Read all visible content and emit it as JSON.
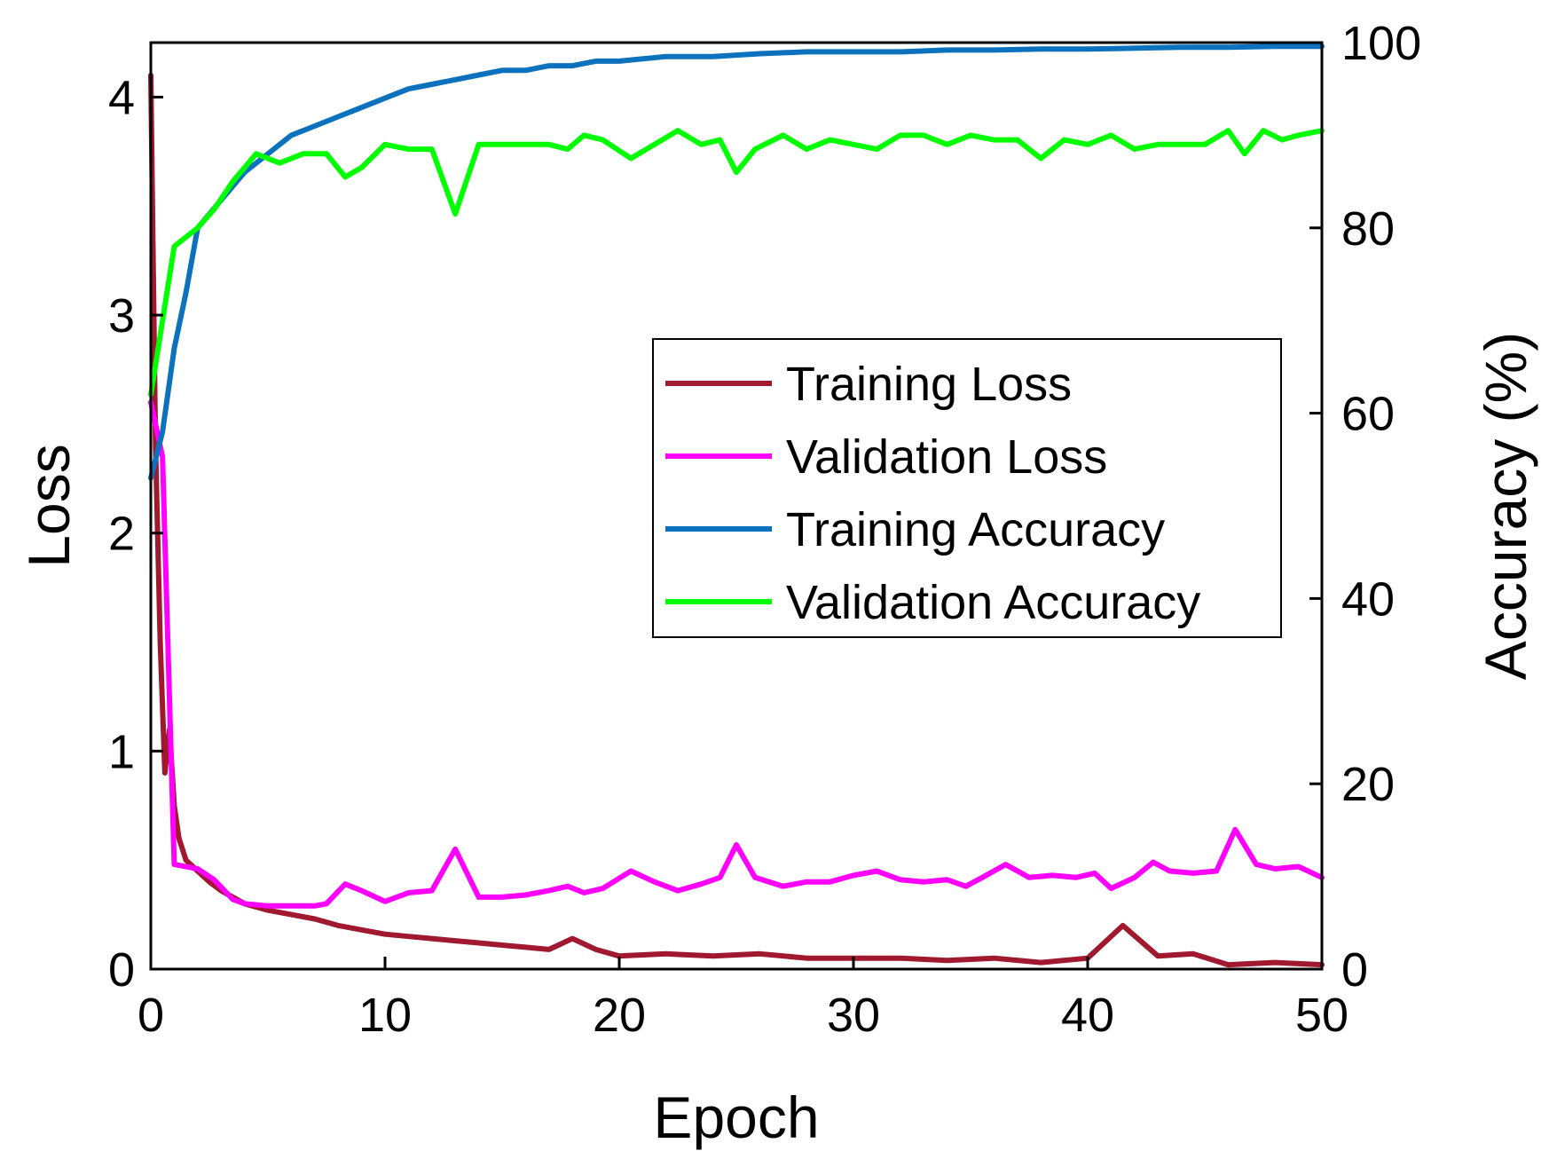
{
  "chart_data": {
    "type": "line",
    "title": "",
    "xlabel": "Epoch",
    "ylabel_left": "Loss",
    "ylabel_right": "Accuracy (%)",
    "xlim": [
      0,
      50
    ],
    "ylim_left": [
      0,
      4.25
    ],
    "ylim_right": [
      0,
      100
    ],
    "xticks": [
      0,
      10,
      20,
      30,
      40,
      50
    ],
    "yticks_left": [
      0,
      1,
      2,
      3,
      4
    ],
    "yticks_right": [
      0,
      20,
      40,
      60,
      80,
      100
    ],
    "grid": false,
    "legend_position": "center-right",
    "series": [
      {
        "name": "Training Loss",
        "axis": "left",
        "color": "#a0192f",
        "x": [
          0,
          0.2,
          0.4,
          0.6,
          0.8,
          1.0,
          1.2,
          1.5,
          2,
          2.5,
          3,
          3.5,
          4,
          5,
          6,
          7,
          8,
          9,
          10,
          11,
          12,
          13,
          14,
          15,
          16,
          17,
          18,
          19,
          20,
          22,
          24,
          26,
          28,
          30,
          32,
          34,
          36,
          38,
          40,
          41.5,
          43,
          44.5,
          46,
          48,
          50
        ],
        "values": [
          4.1,
          2.4,
          1.5,
          0.9,
          1.1,
          0.75,
          0.6,
          0.5,
          0.45,
          0.4,
          0.36,
          0.33,
          0.3,
          0.27,
          0.25,
          0.23,
          0.2,
          0.18,
          0.16,
          0.15,
          0.14,
          0.13,
          0.12,
          0.11,
          0.1,
          0.09,
          0.14,
          0.09,
          0.06,
          0.07,
          0.06,
          0.07,
          0.05,
          0.05,
          0.05,
          0.04,
          0.05,
          0.03,
          0.05,
          0.2,
          0.06,
          0.07,
          0.02,
          0.03,
          0.02
        ]
      },
      {
        "name": "Validation Loss",
        "axis": "left",
        "color": "#ff00ff",
        "x": [
          0,
          0.5,
          1,
          2,
          2.7,
          3.5,
          4,
          5,
          6,
          7,
          7.5,
          8.3,
          9,
          10,
          11,
          12,
          13,
          14,
          15,
          16,
          17,
          17.8,
          18.5,
          19.3,
          20.5,
          21.5,
          22.5,
          23.5,
          24.3,
          25,
          25.8,
          27,
          28,
          29,
          30,
          31,
          32,
          33,
          34,
          34.8,
          35.5,
          36.5,
          37.5,
          38.5,
          39.5,
          40.3,
          41,
          42,
          42.8,
          43.5,
          44.5,
          45.5,
          46.3,
          47.2,
          48,
          49,
          50
        ],
        "values": [
          2.6,
          2.35,
          0.48,
          0.46,
          0.41,
          0.32,
          0.3,
          0.29,
          0.29,
          0.29,
          0.3,
          0.39,
          0.36,
          0.31,
          0.35,
          0.36,
          0.55,
          0.33,
          0.33,
          0.34,
          0.36,
          0.38,
          0.35,
          0.37,
          0.45,
          0.4,
          0.36,
          0.39,
          0.42,
          0.57,
          0.42,
          0.38,
          0.4,
          0.4,
          0.43,
          0.45,
          0.41,
          0.4,
          0.41,
          0.38,
          0.42,
          0.48,
          0.42,
          0.43,
          0.42,
          0.44,
          0.37,
          0.42,
          0.49,
          0.45,
          0.44,
          0.45,
          0.64,
          0.48,
          0.46,
          0.47,
          0.42
        ]
      },
      {
        "name": "Training Accuracy",
        "axis": "right",
        "color": "#0c72bd",
        "x": [
          0,
          0.5,
          1,
          1.5,
          2,
          3,
          4,
          5,
          6,
          7,
          8,
          9,
          10,
          11,
          12,
          13,
          14,
          15,
          16,
          17,
          18,
          19,
          20,
          22,
          24,
          26,
          28,
          30,
          32,
          34,
          36,
          38,
          40,
          42,
          44,
          46,
          48,
          50
        ],
        "values": [
          53,
          58,
          67,
          73,
          80,
          83,
          86,
          88,
          90,
          91,
          92,
          93,
          94,
          95,
          95.5,
          96,
          96.5,
          97,
          97,
          97.5,
          97.5,
          98,
          98,
          98.5,
          98.5,
          98.8,
          99,
          99,
          99,
          99.2,
          99.2,
          99.3,
          99.3,
          99.4,
          99.5,
          99.5,
          99.6,
          99.6
        ]
      },
      {
        "name": "Validation Accuracy",
        "axis": "right",
        "color": "#00ff00",
        "x": [
          0,
          0.5,
          1,
          1.5,
          2,
          2.7,
          3.5,
          4.5,
          5.5,
          6.5,
          7.5,
          8.3,
          9,
          10,
          11,
          12,
          13,
          14,
          15,
          16,
          17,
          17.8,
          18.5,
          19.3,
          20.5,
          21.5,
          22.5,
          23.5,
          24.3,
          25,
          25.8,
          27,
          28,
          29,
          30,
          31,
          32,
          33,
          34,
          35,
          36,
          37,
          38,
          39,
          40,
          41,
          42,
          43,
          44,
          45,
          46,
          46.7,
          47.5,
          48.3,
          49,
          50
        ],
        "values": [
          62,
          70,
          78,
          79,
          80,
          82,
          85,
          88,
          87,
          88,
          88,
          85.5,
          86.5,
          89,
          88.5,
          88.5,
          81.5,
          89,
          89,
          89,
          89,
          88.5,
          90,
          89.5,
          87.5,
          89,
          90.5,
          89,
          89.5,
          86,
          88.5,
          90,
          88.5,
          89.5,
          89,
          88.5,
          90,
          90,
          89,
          90,
          89.5,
          89.5,
          87.5,
          89.5,
          89,
          90,
          88.5,
          89,
          89,
          89,
          90.5,
          88,
          90.5,
          89.5,
          90,
          90.5
        ]
      }
    ]
  }
}
